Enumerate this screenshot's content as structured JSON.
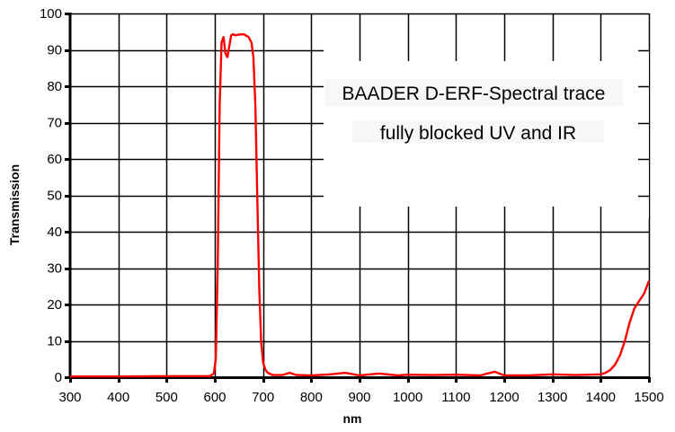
{
  "chart_data": {
    "type": "line",
    "title": "",
    "annotation": {
      "line1": "BAADER D-ERF-Spectral trace",
      "line2": "fully blocked UV and IR"
    },
    "xlabel": "nm",
    "ylabel": "Transmission",
    "xlim": [
      300,
      1500
    ],
    "ylim": [
      0,
      100
    ],
    "x_ticks": [
      300,
      400,
      500,
      600,
      700,
      800,
      900,
      1000,
      1100,
      1200,
      1300,
      1400,
      1500
    ],
    "y_ticks": [
      0,
      10,
      20,
      30,
      40,
      50,
      60,
      70,
      80,
      90,
      100
    ],
    "grid": true,
    "legend": null,
    "series": [
      {
        "name": "Transmission",
        "color": "#ff0000",
        "x": [
          300,
          400,
          500,
          590,
          598,
          602,
          606,
          610,
          614,
          618,
          622,
          626,
          630,
          634,
          638,
          642,
          650,
          660,
          670,
          676,
          680,
          684,
          688,
          692,
          696,
          700,
          705,
          710,
          720,
          740,
          755,
          770,
          800,
          840,
          870,
          900,
          940,
          980,
          1000,
          1050,
          1100,
          1150,
          1180,
          1200,
          1250,
          1300,
          1350,
          1400,
          1410,
          1420,
          1430,
          1440,
          1450,
          1460,
          1470,
          1480,
          1490,
          1500
        ],
        "y": [
          0.2,
          0.2,
          0.3,
          0.3,
          1,
          5,
          30,
          75,
          92,
          93.5,
          89,
          88,
          91,
          94,
          94.3,
          94,
          94.2,
          94.3,
          93.5,
          92,
          88,
          75,
          50,
          25,
          10,
          4,
          2,
          1.2,
          0.6,
          0.6,
          1.2,
          0.6,
          0.5,
          0.8,
          1.2,
          0.5,
          1.0,
          0.5,
          0.7,
          0.6,
          0.7,
          0.5,
          1.5,
          0.5,
          0.5,
          0.8,
          0.6,
          0.8,
          1.2,
          2,
          3.5,
          6,
          10,
          15,
          19,
          21,
          23,
          26.5
        ]
      }
    ]
  }
}
